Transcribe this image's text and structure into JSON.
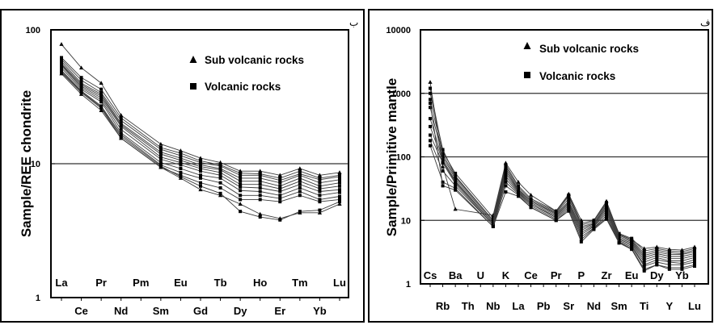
{
  "chart_data": [
    {
      "type": "line",
      "ylabel": "Sample/REE chondrite",
      "yscale": "log",
      "ylim": [
        1,
        100
      ],
      "yticks": [
        {
          "value": 100,
          "label": "100"
        },
        {
          "value": 10,
          "label": "10"
        },
        {
          "value": 1,
          "label": "1"
        }
      ],
      "reference_lines": [
        10
      ],
      "corner_mark": "ب",
      "categories": [
        "La",
        "Ce",
        "Pr",
        "Nd",
        "Pm",
        "Sm",
        "Eu",
        "Gd",
        "Tb",
        "Dy",
        "Ho",
        "Er",
        "Tm",
        "Yb",
        "Lu"
      ],
      "legend": [
        {
          "marker": "triangle",
          "label": "Sub volcanic rocks"
        },
        {
          "marker": "square",
          "label": "Volcanic rocks"
        }
      ],
      "series": [
        {
          "marker": "triangle",
          "values": [
            78,
            52,
            40,
            23,
            null,
            14,
            12.5,
            11,
            10.2,
            8.8,
            8.8,
            8.2,
            9.2,
            8.2,
            8.6
          ]
        },
        {
          "marker": "square",
          "values": [
            62,
            44,
            36,
            22,
            null,
            13.2,
            12,
            10.5,
            9.8,
            8.5,
            8.4,
            7.8,
            8.8,
            7.8,
            8.2
          ]
        },
        {
          "marker": "square",
          "values": [
            60,
            42,
            34,
            21,
            null,
            12.8,
            11.5,
            10.2,
            9.6,
            8.2,
            8.2,
            7.5,
            8.4,
            7.6,
            8.0
          ]
        },
        {
          "marker": "square",
          "values": [
            58,
            40,
            33,
            20,
            null,
            12.2,
            11,
            9.8,
            9.2,
            7.8,
            7.8,
            7.2,
            8.2,
            7.2,
            7.6
          ]
        },
        {
          "marker": "square",
          "values": [
            56,
            39,
            32,
            19.5,
            null,
            11.8,
            10.6,
            9.5,
            9.0,
            7.4,
            7.4,
            6.8,
            7.8,
            6.8,
            7.2
          ]
        },
        {
          "marker": "square",
          "values": [
            55,
            38,
            31,
            19,
            null,
            11.2,
            10.2,
            9.2,
            8.6,
            7.0,
            7.0,
            6.5,
            7.4,
            6.5,
            6.8
          ]
        },
        {
          "marker": "square",
          "values": [
            54,
            37,
            30,
            18,
            null,
            10.8,
            9.8,
            8.8,
            8.2,
            6.7,
            6.6,
            6.2,
            7.0,
            6.2,
            6.4
          ]
        },
        {
          "marker": "square",
          "values": [
            52,
            36,
            29,
            17,
            null,
            10.2,
            9.2,
            8.2,
            7.8,
            6.3,
            6.2,
            5.8,
            6.6,
            5.8,
            6.1
          ]
        },
        {
          "marker": "square",
          "values": [
            50,
            35,
            27,
            16.5,
            null,
            9.8,
            8.6,
            7.8,
            7.2,
            5.8,
            5.8,
            5.5,
            6.2,
            5.4,
            5.7
          ]
        },
        {
          "marker": "square",
          "values": [
            48,
            34,
            26,
            15.5,
            null,
            9.4,
            8.2,
            7.2,
            6.6,
            5.4,
            5.4,
            5.2,
            5.8,
            5.2,
            5.4
          ]
        },
        {
          "marker": "triangle",
          "values": [
            47,
            33,
            25,
            15.5,
            null,
            9.4,
            7.8,
            6.4,
            5.8,
            5.0,
            4.2,
            3.9,
            4.3,
            4.3,
            5.0
          ]
        },
        {
          "marker": "square",
          "values": [
            49,
            34.5,
            26.5,
            16,
            null,
            9.6,
            8.0,
            6.8,
            6.0,
            4.4,
            4.0,
            3.8,
            4.4,
            4.5,
            5.2
          ]
        }
      ]
    },
    {
      "type": "line",
      "ylabel": "Sample/Primitive mantle",
      "yscale": "log",
      "ylim": [
        1,
        10000
      ],
      "yticks": [
        {
          "value": 10000,
          "label": "10000"
        },
        {
          "value": 1000,
          "label": "1000"
        },
        {
          "value": 100,
          "label": "100"
        },
        {
          "value": 10,
          "label": "10"
        },
        {
          "value": 1,
          "label": "1"
        }
      ],
      "reference_lines": [
        1000,
        100,
        10
      ],
      "corner_mark": "ف",
      "categories": [
        "Cs",
        "Rb",
        "Ba",
        "Th",
        "U",
        "Nb",
        "K",
        "La",
        "Ce",
        "Pb",
        "Pr",
        "Sr",
        "P",
        "Nd",
        "Zr",
        "Sm",
        "Eu",
        "Ti",
        "Dy",
        "Y",
        "Yb",
        "Lu"
      ],
      "legend": [
        {
          "marker": "triangle",
          "label": "Sub volcanic rocks"
        },
        {
          "marker": "square",
          "label": "Volcanic rocks"
        }
      ],
      "series": [
        {
          "marker": "triangle",
          "values": [
            1500,
            70,
            15,
            null,
            null,
            12,
            80,
            40,
            25,
            null,
            14,
            26,
            10,
            10,
            20,
            6,
            5,
            3.6,
            3.8,
            3.5,
            3.4,
            3.8
          ]
        },
        {
          "marker": "square",
          "values": [
            1200,
            120,
            55,
            null,
            null,
            11,
            75,
            35,
            22,
            null,
            14,
            25,
            9,
            10,
            19,
            6.2,
            5.2,
            3.3,
            3.6,
            3.3,
            3.2,
            3.6
          ]
        },
        {
          "marker": "square",
          "values": [
            1000,
            130,
            50,
            null,
            null,
            10,
            70,
            33,
            21,
            null,
            13.5,
            24,
            8.5,
            9.5,
            18,
            6.0,
            5.0,
            3.0,
            3.4,
            3.1,
            3.0,
            3.4
          ]
        },
        {
          "marker": "square",
          "values": [
            800,
            110,
            48,
            null,
            null,
            10,
            65,
            31,
            20,
            null,
            13,
            22,
            8,
            9,
            17,
            5.8,
            4.8,
            2.8,
            3.2,
            2.9,
            2.9,
            3.2
          ]
        },
        {
          "marker": "square",
          "values": [
            600,
            100,
            45,
            null,
            null,
            9.5,
            60,
            30,
            20,
            null,
            12.5,
            20,
            7.5,
            8.8,
            16,
            5.5,
            4.6,
            2.6,
            3.0,
            2.7,
            2.7,
            3.0
          ]
        },
        {
          "marker": "square",
          "values": [
            400,
            90,
            42,
            null,
            null,
            9,
            55,
            29,
            19,
            null,
            12,
            19,
            7,
            8.5,
            15,
            5.2,
            4.4,
            2.4,
            2.8,
            2.5,
            2.5,
            2.8
          ]
        },
        {
          "marker": "square",
          "values": [
            300,
            85,
            40,
            null,
            null,
            9,
            50,
            28,
            18,
            null,
            11.5,
            18,
            6.5,
            8.2,
            14,
            5.0,
            4.2,
            2.2,
            2.6,
            2.3,
            2.3,
            2.6
          ]
        },
        {
          "marker": "square",
          "values": [
            220,
            80,
            38,
            null,
            null,
            8.5,
            45,
            27,
            18,
            null,
            11,
            17,
            6,
            8,
            13,
            4.8,
            4.0,
            2.0,
            2.4,
            2.2,
            2.1,
            2.4
          ]
        },
        {
          "marker": "square",
          "values": [
            180,
            60,
            35,
            null,
            null,
            8.5,
            40,
            26,
            17,
            null,
            10.5,
            16,
            5.5,
            7.6,
            12,
            4.6,
            3.8,
            1.9,
            2.2,
            2.0,
            2.0,
            2.2
          ]
        },
        {
          "marker": "square",
          "values": [
            150,
            40,
            32,
            null,
            null,
            8,
            35,
            25,
            16,
            null,
            10,
            15,
            5,
            7.5,
            11,
            4.5,
            3.6,
            1.7,
            2.0,
            1.8,
            1.8,
            2.0
          ]
        },
        {
          "marker": "square",
          "values": [
            700,
            35,
            30,
            null,
            null,
            8,
            28,
            24,
            16,
            null,
            10,
            14,
            4.6,
            7.2,
            10.5,
            4.4,
            3.5,
            1.6,
            2.0,
            1.7,
            1.7,
            1.9
          ]
        }
      ]
    }
  ]
}
